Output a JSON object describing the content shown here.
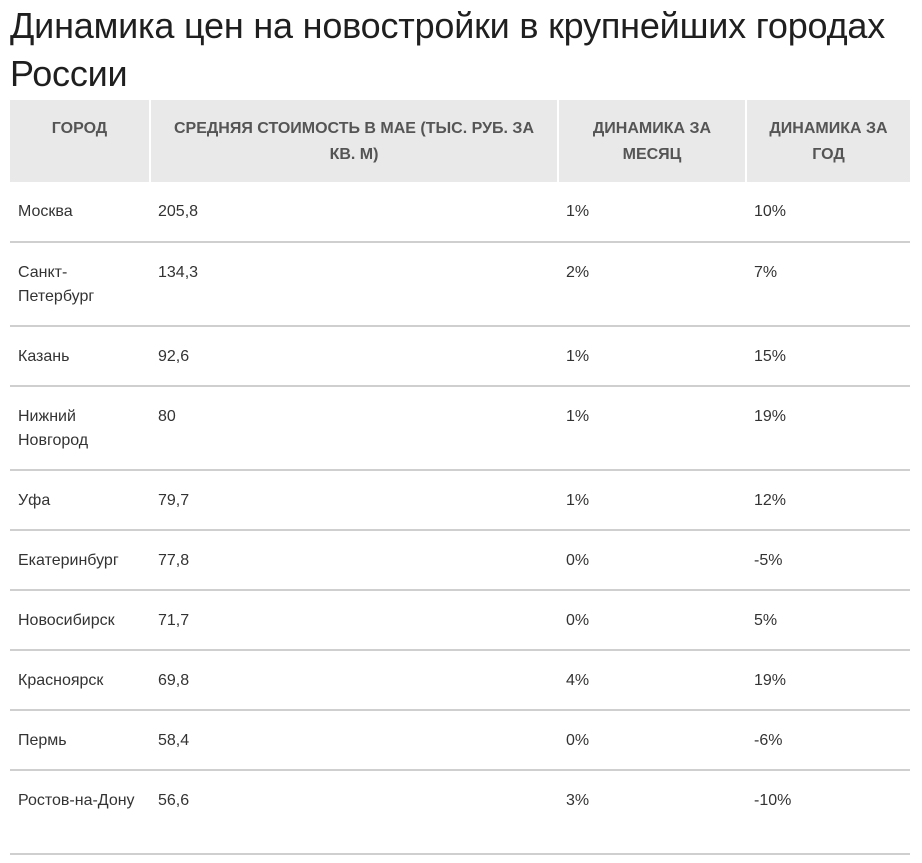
{
  "title": "Динамика цен на новостройки в крупнейших городах России",
  "table": {
    "headers": [
      "ГОРОД",
      "СРЕДНЯЯ СТОИМОСТЬ В МАЕ (ТЫС. РУБ. ЗА КВ. М)",
      "ДИНАМИКА ЗА МЕСЯЦ",
      "ДИНАМИКА ЗА ГОД"
    ],
    "rows": [
      {
        "city": "Москва",
        "price": "205,8",
        "month": "1%",
        "year": "10%"
      },
      {
        "city": "Санкт-Петербург",
        "price": "134,3",
        "month": "2%",
        "year": "7%"
      },
      {
        "city": "Казань",
        "price": "92,6",
        "month": "1%",
        "year": "15%"
      },
      {
        "city": "Нижний Новгород",
        "price": "80",
        "month": "1%",
        "year": "19%"
      },
      {
        "city": "Уфа",
        "price": "79,7",
        "month": "1%",
        "year": "12%"
      },
      {
        "city": "Екатеринбург",
        "price": "77,8",
        "month": "0%",
        "year": "-5%"
      },
      {
        "city": "Новосибирск",
        "price": "71,7",
        "month": "0%",
        "year": "5%"
      },
      {
        "city": "Красноярск",
        "price": "69,8",
        "month": "4%",
        "year": "19%"
      },
      {
        "city": "Пермь",
        "price": "58,4",
        "month": "0%",
        "year": "-6%"
      },
      {
        "city": "Ростов-на-Дону",
        "price": "56,6",
        "month": "3%",
        "year": "-10%"
      }
    ]
  }
}
